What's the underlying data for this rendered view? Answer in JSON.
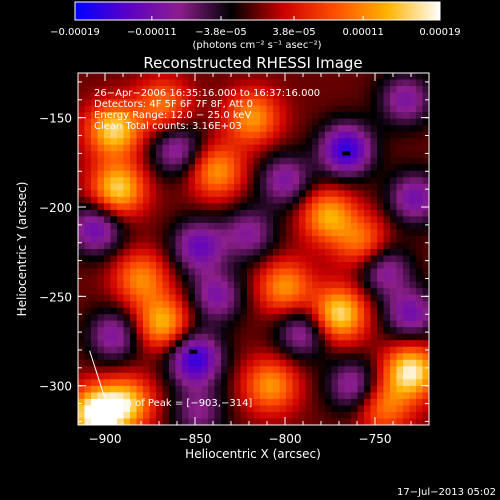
{
  "chart_data": {
    "type": "heatmap",
    "title": "Reconstructed RHESSI Image",
    "xlabel": "Heliocentric X (arcsec)",
    "ylabel": "Heliocentric Y (arcsec)",
    "xlim": [
      -915,
      -720
    ],
    "ylim": [
      -322,
      -125
    ],
    "xticks": [
      -900,
      -850,
      -800,
      -750
    ],
    "yticks": [
      -150,
      -200,
      -250,
      -300
    ],
    "xtick_labels": [
      "−900",
      "−850",
      "−800",
      "−750"
    ],
    "ytick_labels": [
      "−150",
      "−200",
      "−250",
      "−300"
    ],
    "colorbar": {
      "min": -0.00019,
      "max": 0.00019,
      "tick_values": [
        -0.00019,
        -0.00011,
        -3.8e-05,
        3.8e-05,
        0.00011,
        0.00019
      ],
      "tick_labels": [
        "−0.00019",
        "−0.00011",
        "−3.8e−05",
        "3.8e−05",
        "0.00011",
        "0.00019"
      ],
      "unit_label": "(photons cm⁻² s⁻¹ asec⁻²)",
      "colors": [
        "#0000ff",
        "#5a00c8",
        "#8c1e8c",
        "#000000",
        "#cc0000",
        "#ff5000",
        "#ffb400",
        "#ffffff"
      ]
    },
    "info_lines": [
      "26−Apr−2006 16:35:16.000 to 16:37:16.000",
      "Detectors: 4F 5F 6F 7F 8F, Att 0",
      "Energy Range: 12.0 − 25.0 keV",
      "Clean     Total counts: 3.16E+03"
    ],
    "peak_label": "Position of Peak = [−903,−314]",
    "peak": {
      "x": -903,
      "y": -314
    },
    "markers": [
      {
        "x": -766,
        "y": -170
      },
      {
        "x": -851,
        "y": -281
      }
    ],
    "blobs": [
      {
        "x": -895,
        "y": -157,
        "v": 0.00016
      },
      {
        "x": -905,
        "y": -212,
        "v": -0.00012
      },
      {
        "x": -868,
        "y": -143,
        "v": 0.0001
      },
      {
        "x": -860,
        "y": -168,
        "v": -0.0001
      },
      {
        "x": -893,
        "y": -190,
        "v": 0.00016
      },
      {
        "x": -880,
        "y": -240,
        "v": 0.00011
      },
      {
        "x": -848,
        "y": -222,
        "v": -0.00012
      },
      {
        "x": -818,
        "y": -150,
        "v": 0.00012
      },
      {
        "x": -800,
        "y": -185,
        "v": -0.0001
      },
      {
        "x": -838,
        "y": -180,
        "v": 0.00012
      },
      {
        "x": -766,
        "y": -168,
        "v": -0.00016
      },
      {
        "x": -733,
        "y": -140,
        "v": -0.0001
      },
      {
        "x": -728,
        "y": -195,
        "v": -0.00011
      },
      {
        "x": -776,
        "y": -205,
        "v": 0.00013
      },
      {
        "x": -757,
        "y": -220,
        "v": 0.0001
      },
      {
        "x": -745,
        "y": -235,
        "v": -0.0001
      },
      {
        "x": -800,
        "y": -245,
        "v": 0.00012
      },
      {
        "x": -770,
        "y": -260,
        "v": 0.00017
      },
      {
        "x": -730,
        "y": -260,
        "v": -0.00011
      },
      {
        "x": -850,
        "y": -285,
        "v": -0.00016
      },
      {
        "x": -838,
        "y": -250,
        "v": -0.0001
      },
      {
        "x": -868,
        "y": -265,
        "v": 0.00014
      },
      {
        "x": -888,
        "y": -310,
        "v": 0.00014
      },
      {
        "x": -905,
        "y": -316,
        "v": 0.0002
      },
      {
        "x": -895,
        "y": -272,
        "v": -0.0001
      },
      {
        "x": -808,
        "y": -300,
        "v": 0.00012
      },
      {
        "x": -790,
        "y": -270,
        "v": -0.0001
      },
      {
        "x": -762,
        "y": -300,
        "v": -0.0001
      },
      {
        "x": -730,
        "y": -292,
        "v": 0.00018
      },
      {
        "x": -745,
        "y": -312,
        "v": 0.0001
      },
      {
        "x": -820,
        "y": -215,
        "v": -9e-05
      },
      {
        "x": -848,
        "y": -315,
        "v": -8e-05
      }
    ]
  },
  "timestamp": "17−Jul−2013 05:02"
}
